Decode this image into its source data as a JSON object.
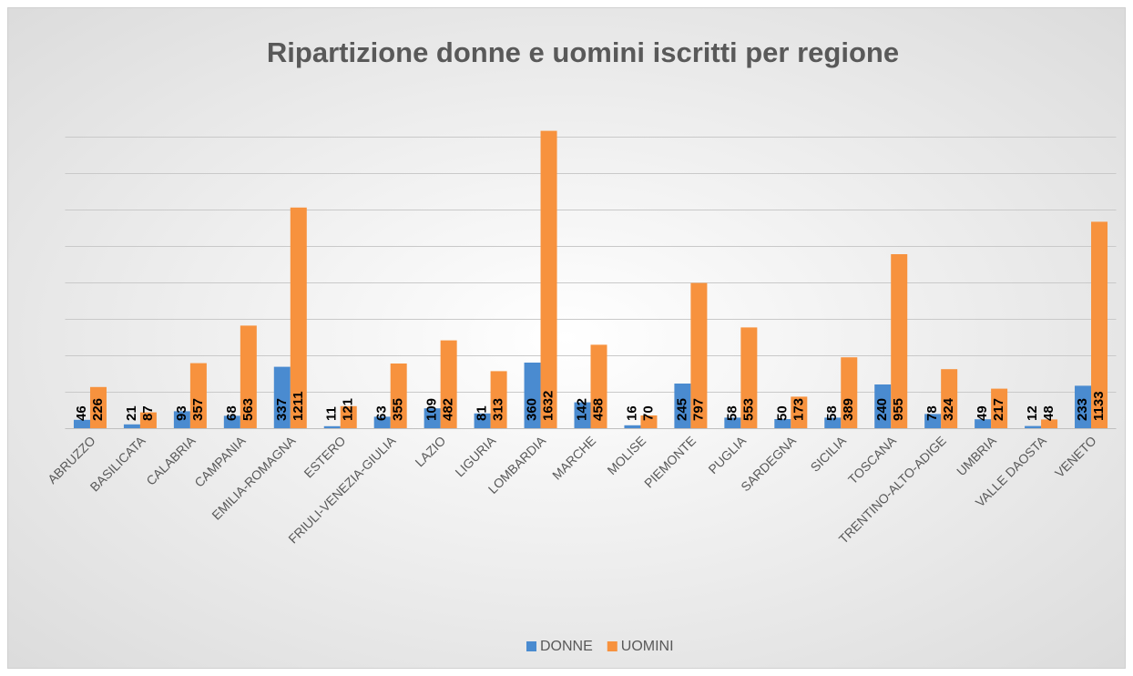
{
  "chart_data": {
    "type": "bar",
    "title": "Ripartizione donne e uomini iscritti per regione",
    "categories": [
      "ABRUZZO",
      "BASILICATA",
      "CALABRIA",
      "CAMPANIA",
      "EMILIA-ROMAGNA",
      "ESTERO",
      "FRIULI-VENEZIA-GIULIA",
      "LAZIO",
      "LIGURIA",
      "LOMBARDIA",
      "MARCHE",
      "MOLISE",
      "PIEMONTE",
      "PUGLIA",
      "SARDEGNA",
      "SICILIA",
      "TOSCANA",
      "TRENTINO-ALTO-ADIGE",
      "UMBRIA",
      "VALLE DAOSTA",
      "VENETO"
    ],
    "series": [
      {
        "name": "DONNE",
        "color": "#4a8bd0",
        "values": [
          46,
          21,
          93,
          68,
          337,
          11,
          63,
          109,
          81,
          360,
          142,
          16,
          245,
          58,
          50,
          58,
          240,
          78,
          49,
          12,
          233
        ]
      },
      {
        "name": "UOMINI",
        "color": "#f7923e",
        "values": [
          226,
          87,
          357,
          563,
          1211,
          121,
          355,
          482,
          313,
          1632,
          458,
          70,
          797,
          553,
          173,
          389,
          955,
          324,
          217,
          48,
          1133
        ]
      }
    ],
    "ylim": [
      0,
      1800
    ],
    "yticks": [
      0,
      200,
      400,
      600,
      800,
      1000,
      1200,
      1400,
      1600
    ],
    "grid": true,
    "legend": "bottom"
  }
}
